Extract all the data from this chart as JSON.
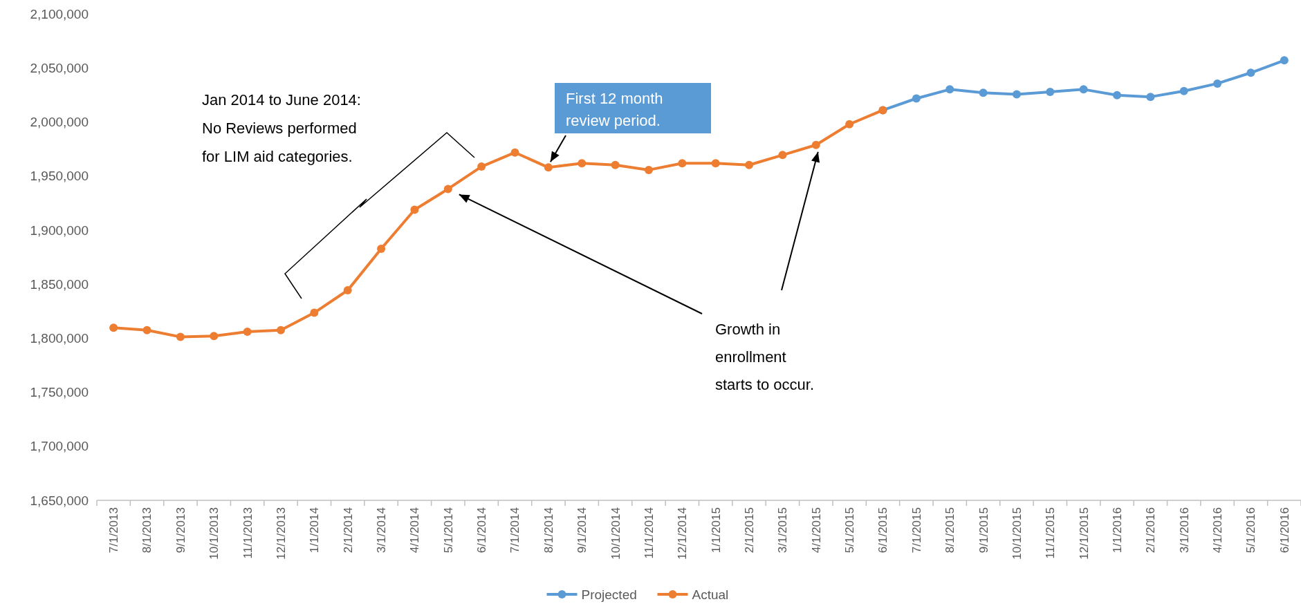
{
  "chart_data": {
    "type": "line",
    "categories": [
      "7/1/2013",
      "8/1/2013",
      "9/1/2013",
      "10/1/2013",
      "11/1/2013",
      "12/1/2013",
      "1/1/2014",
      "2/1/2014",
      "3/1/2014",
      "4/1/2014",
      "5/1/2014",
      "6/1/2014",
      "7/1/2014",
      "8/1/2014",
      "9/1/2014",
      "10/1/2014",
      "11/1/2014",
      "12/1/2014",
      "1/1/2015",
      "2/1/2015",
      "3/1/2015",
      "4/1/2015",
      "5/1/2015",
      "6/1/2015",
      "7/1/2015",
      "8/1/2015",
      "9/1/2015",
      "10/1/2015",
      "11/1/2015",
      "12/1/2015",
      "1/1/2016",
      "2/1/2016",
      "3/1/2016",
      "4/1/2016",
      "5/1/2016",
      "6/1/2016"
    ],
    "series": [
      {
        "name": "Projected",
        "color": "#5b9bd5",
        "values": [
          null,
          null,
          null,
          null,
          null,
          null,
          null,
          null,
          null,
          null,
          null,
          null,
          null,
          null,
          null,
          null,
          null,
          null,
          null,
          null,
          null,
          null,
          null,
          2010900,
          2021700,
          2030100,
          2027000,
          2025500,
          2027800,
          2030100,
          2024700,
          2023200,
          2028600,
          2035500,
          2045500,
          2057000
        ]
      },
      {
        "name": "Actual",
        "color": "#ed7d31",
        "values": [
          1809700,
          1807400,
          1801200,
          1802000,
          1806000,
          1807400,
          1823500,
          1844300,
          1882700,
          1918800,
          1938000,
          1958700,
          1971700,
          1957900,
          1961800,
          1960200,
          1955600,
          1961800,
          1961800,
          1960200,
          1969400,
          1978700,
          1997900,
          2010900,
          null,
          null,
          null,
          null,
          null,
          null,
          null,
          null,
          null,
          null,
          null,
          null
        ]
      }
    ],
    "ylim": [
      1650000,
      2100000
    ],
    "yticks": [
      {
        "value": 1650000,
        "label": "1,650,000"
      },
      {
        "value": 1700000,
        "label": "1,700,000"
      },
      {
        "value": 1750000,
        "label": "1,750,000"
      },
      {
        "value": 1800000,
        "label": "1,800,000"
      },
      {
        "value": 1850000,
        "label": "1,850,000"
      },
      {
        "value": 1900000,
        "label": "1,900,000"
      },
      {
        "value": 1950000,
        "label": "1,950,000"
      },
      {
        "value": 2000000,
        "label": "2,000,000"
      },
      {
        "value": 2050000,
        "label": "2,050,000"
      },
      {
        "value": 2100000,
        "label": "2,100,000"
      }
    ],
    "grid": false,
    "legend": "bottom",
    "marker": "circle",
    "line_style": "solid",
    "annotations": [
      "Jan 2014 to June 2014:\nNo Reviews performed\nfor LIM aid categories.",
      {
        "text": "First 12 month\nreview period.",
        "x": "8/1/2014",
        "y": 1957900
      },
      "Growth in\nenrollment\nstarts to occur."
    ]
  }
}
